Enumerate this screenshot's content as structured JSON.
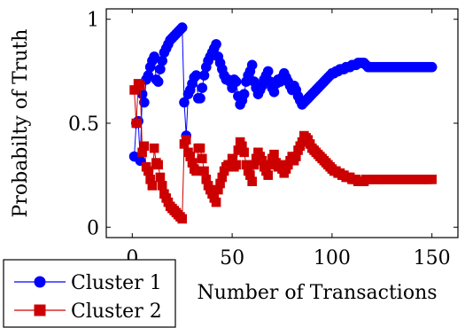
{
  "chart_data": {
    "type": "line",
    "xlabel": "Number of Transactions",
    "ylabel": "Probabilty of Truth",
    "xlim": [
      -13,
      163
    ],
    "ylim": [
      -0.05,
      1.05
    ],
    "x_ticks": [
      0,
      50,
      100,
      150
    ],
    "y_ticks": [
      0,
      0.5,
      1
    ],
    "x_tick_labels": [
      "0",
      "50",
      "100",
      "150"
    ],
    "y_tick_labels": [
      "0",
      "0.5",
      "1"
    ],
    "grid": false,
    "legend_position": "bottom-left",
    "series": [
      {
        "name": "Cluster 1",
        "color": "#0000ff",
        "marker": "circle",
        "x": [
          1,
          2,
          3,
          4,
          5,
          6,
          7,
          8,
          9,
          10,
          11,
          12,
          13,
          14,
          15,
          16,
          17,
          18,
          19,
          20,
          21,
          22,
          23,
          24,
          25,
          26,
          27,
          28,
          29,
          30,
          31,
          32,
          33,
          34,
          35,
          36,
          37,
          38,
          39,
          40,
          41,
          42,
          43,
          44,
          45,
          46,
          47,
          48,
          49,
          50,
          51,
          52,
          53,
          54,
          55,
          56,
          57,
          58,
          59,
          60,
          61,
          62,
          63,
          64,
          65,
          66,
          67,
          68,
          69,
          70,
          71,
          72,
          73,
          74,
          75,
          76,
          77,
          78,
          79,
          80,
          81,
          82,
          83,
          84,
          85,
          86,
          87,
          88,
          89,
          90,
          91,
          92,
          93,
          94,
          95,
          96,
          97,
          98,
          99,
          100,
          101,
          102,
          103,
          104,
          105,
          106,
          107,
          108,
          109,
          110,
          111,
          112,
          113,
          114,
          115,
          116,
          117,
          118,
          119,
          120,
          121,
          122,
          123,
          124,
          125,
          126,
          127,
          128,
          129,
          130,
          131,
          132,
          133,
          134,
          135,
          136,
          137,
          138,
          139,
          140,
          141,
          142,
          143,
          144,
          145,
          146,
          147,
          148,
          149,
          150
        ],
        "y": [
          0.34,
          0.5,
          0.51,
          0.32,
          0.64,
          0.6,
          0.71,
          0.73,
          0.77,
          0.8,
          0.82,
          0.71,
          0.7,
          0.76,
          0.8,
          0.84,
          0.86,
          0.88,
          0.9,
          0.91,
          0.92,
          0.93,
          0.94,
          0.95,
          0.96,
          0.6,
          0.44,
          0.64,
          0.66,
          0.69,
          0.72,
          0.73,
          0.62,
          0.62,
          0.67,
          0.73,
          0.77,
          0.8,
          0.82,
          0.84,
          0.86,
          0.88,
          0.82,
          0.79,
          0.76,
          0.73,
          0.71,
          0.71,
          0.7,
          0.67,
          0.71,
          0.7,
          0.63,
          0.59,
          0.61,
          0.64,
          0.7,
          0.73,
          0.75,
          0.78,
          0.7,
          0.67,
          0.64,
          0.66,
          0.68,
          0.71,
          0.73,
          0.75,
          0.7,
          0.67,
          0.65,
          0.69,
          0.71,
          0.7,
          0.72,
          0.74,
          0.72,
          0.7,
          0.68,
          0.66,
          0.68,
          0.66,
          0.63,
          0.61,
          0.59,
          0.6,
          0.61,
          0.62,
          0.63,
          0.64,
          0.65,
          0.66,
          0.67,
          0.68,
          0.69,
          0.7,
          0.71,
          0.72,
          0.73,
          0.74,
          0.74,
          0.75,
          0.75,
          0.76,
          0.76,
          0.76,
          0.77,
          0.77,
          0.77,
          0.78,
          0.78,
          0.78,
          0.79,
          0.79,
          0.79,
          0.79,
          0.78,
          0.77,
          0.77,
          0.77,
          0.77,
          0.77,
          0.77,
          0.77,
          0.77,
          0.77,
          0.77,
          0.77,
          0.77,
          0.77,
          0.77,
          0.77,
          0.77,
          0.77,
          0.77,
          0.77,
          0.77,
          0.77,
          0.77,
          0.77,
          0.77,
          0.77,
          0.77,
          0.77,
          0.77,
          0.77,
          0.77,
          0.77,
          0.77,
          0.77
        ]
      },
      {
        "name": "Cluster 2",
        "color": "#cc0000",
        "marker": "square",
        "x": [
          1,
          2,
          3,
          4,
          5,
          6,
          7,
          8,
          9,
          10,
          11,
          12,
          13,
          14,
          15,
          16,
          17,
          18,
          19,
          20,
          21,
          22,
          23,
          24,
          25,
          26,
          27,
          28,
          29,
          30,
          31,
          32,
          33,
          34,
          35,
          36,
          37,
          38,
          39,
          40,
          41,
          42,
          43,
          44,
          45,
          46,
          47,
          48,
          49,
          50,
          51,
          52,
          53,
          54,
          55,
          56,
          57,
          58,
          59,
          60,
          61,
          62,
          63,
          64,
          65,
          66,
          67,
          68,
          69,
          70,
          71,
          72,
          73,
          74,
          75,
          76,
          77,
          78,
          79,
          80,
          81,
          82,
          83,
          84,
          85,
          86,
          87,
          88,
          89,
          90,
          91,
          92,
          93,
          94,
          95,
          96,
          97,
          98,
          99,
          100,
          101,
          102,
          103,
          104,
          105,
          106,
          107,
          108,
          109,
          110,
          111,
          112,
          113,
          114,
          115,
          116,
          117,
          118,
          119,
          120,
          121,
          122,
          123,
          124,
          125,
          126,
          127,
          128,
          129,
          130,
          131,
          132,
          133,
          134,
          135,
          136,
          137,
          138,
          139,
          140,
          141,
          142,
          143,
          144,
          145,
          146,
          147,
          148,
          149,
          150
        ],
        "y": [
          0.66,
          0.5,
          0.69,
          0.68,
          0.36,
          0.39,
          0.29,
          0.27,
          0.23,
          0.2,
          0.38,
          0.31,
          0.3,
          0.24,
          0.2,
          0.16,
          0.14,
          0.12,
          0.1,
          0.09,
          0.08,
          0.07,
          0.06,
          0.05,
          0.04,
          0.4,
          0.42,
          0.36,
          0.34,
          0.31,
          0.28,
          0.27,
          0.38,
          0.38,
          0.33,
          0.27,
          0.23,
          0.2,
          0.18,
          0.16,
          0.14,
          0.12,
          0.18,
          0.21,
          0.24,
          0.27,
          0.29,
          0.3,
          0.3,
          0.33,
          0.29,
          0.3,
          0.37,
          0.41,
          0.39,
          0.36,
          0.3,
          0.27,
          0.25,
          0.22,
          0.3,
          0.33,
          0.36,
          0.34,
          0.32,
          0.29,
          0.27,
          0.25,
          0.3,
          0.33,
          0.35,
          0.31,
          0.29,
          0.3,
          0.28,
          0.26,
          0.28,
          0.3,
          0.32,
          0.34,
          0.32,
          0.34,
          0.37,
          0.39,
          0.41,
          0.44,
          0.43,
          0.42,
          0.4,
          0.38,
          0.37,
          0.36,
          0.35,
          0.34,
          0.33,
          0.32,
          0.31,
          0.3,
          0.29,
          0.28,
          0.27,
          0.27,
          0.26,
          0.26,
          0.25,
          0.25,
          0.24,
          0.24,
          0.24,
          0.23,
          0.23,
          0.23,
          0.22,
          0.22,
          0.22,
          0.22,
          0.23,
          0.23,
          0.23,
          0.23,
          0.23,
          0.23,
          0.23,
          0.23,
          0.23,
          0.23,
          0.23,
          0.23,
          0.23,
          0.23,
          0.23,
          0.23,
          0.23,
          0.23,
          0.23,
          0.23,
          0.23,
          0.23,
          0.23,
          0.23,
          0.23,
          0.23,
          0.23,
          0.23,
          0.23,
          0.23,
          0.23,
          0.23,
          0.23,
          0.23
        ]
      }
    ]
  }
}
